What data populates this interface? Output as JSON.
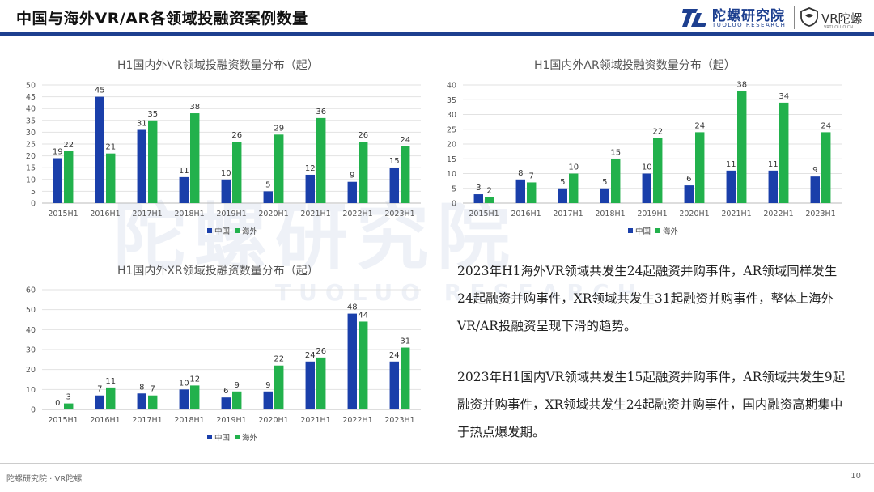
{
  "header": {
    "title": "中国与海外VR/AR各领域投融资案例数量",
    "brand_name": "陀螺研究院",
    "brand_sub": "TUOLUO RESEARCH",
    "vr_brand": "VR陀螺",
    "vr_url": "VRTUOLUO.CN"
  },
  "watermark": {
    "main": "陀螺研究院",
    "sub": "TUOLUO RESEARCH"
  },
  "colors": {
    "china": "#1a3faa",
    "overseas": "#22b14c",
    "brand": "#1d3f8f"
  },
  "chart_data": [
    {
      "type": "bar",
      "title": "H1国内外VR领域投融资数量分布（起）",
      "categories": [
        "2015H1",
        "2016H1",
        "2017H1",
        "2018H1",
        "2019H1",
        "2020H1",
        "2021H1",
        "2022H1",
        "2023H1"
      ],
      "series": [
        {
          "name": "中国",
          "values": [
            19,
            45,
            31,
            11,
            10,
            5,
            12,
            9,
            15
          ]
        },
        {
          "name": "海外",
          "values": [
            22,
            21,
            35,
            38,
            26,
            29,
            36,
            26,
            24
          ]
        }
      ],
      "ylim": [
        0,
        50
      ],
      "yticks": [
        0,
        5,
        10,
        15,
        20,
        25,
        30,
        35,
        40,
        45,
        50
      ],
      "legend": "bottom",
      "grid": true
    },
    {
      "type": "bar",
      "title": "H1国内外AR领域投融资数量分布（起）",
      "categories": [
        "2015H1",
        "2016H1",
        "2017H1",
        "2018H1",
        "2019H1",
        "2020H1",
        "2021H1",
        "2022H1",
        "2023H1"
      ],
      "series": [
        {
          "name": "中国",
          "values": [
            3,
            8,
            5,
            5,
            10,
            6,
            11,
            11,
            9
          ]
        },
        {
          "name": "海外",
          "values": [
            2,
            7,
            10,
            15,
            22,
            24,
            38,
            34,
            24
          ]
        }
      ],
      "ylim": [
        0,
        40
      ],
      "yticks": [
        0,
        5,
        10,
        15,
        20,
        25,
        30,
        35,
        40
      ],
      "legend": "bottom",
      "grid": true
    },
    {
      "type": "bar",
      "title": "H1国内外XR领域投融资数量分布（起）",
      "categories": [
        "2015H1",
        "2016H1",
        "2017H1",
        "2018H1",
        "2019H1",
        "2020H1",
        "2021H1",
        "2022H1",
        "2023H1"
      ],
      "series": [
        {
          "name": "中国",
          "values": [
            0,
            7,
            8,
            10,
            6,
            9,
            24,
            48,
            24
          ]
        },
        {
          "name": "海外",
          "values": [
            3,
            11,
            7,
            12,
            9,
            22,
            26,
            44,
            31
          ]
        }
      ],
      "ylim": [
        0,
        60
      ],
      "yticks": [
        0,
        10,
        20,
        30,
        40,
        50,
        60
      ],
      "legend": "bottom",
      "grid": true
    }
  ],
  "text": {
    "para1": "2023年H1海外VR领域共发生24起融资并购事件，AR领域同样发生24起融资并购事件，XR领域共发生31起融资并购事件，整体上海外VR/AR投融资呈现下滑的趋势。",
    "para2": "2023年H1国内VR领域共发生15起融资并购事件，AR领域共发生9起融资并购事件，XR领域共发生24起融资并购事件，国内融资高期集中于热点爆发期。"
  },
  "footer": {
    "left": "陀螺研究院 · VR陀螺",
    "page": "10"
  }
}
